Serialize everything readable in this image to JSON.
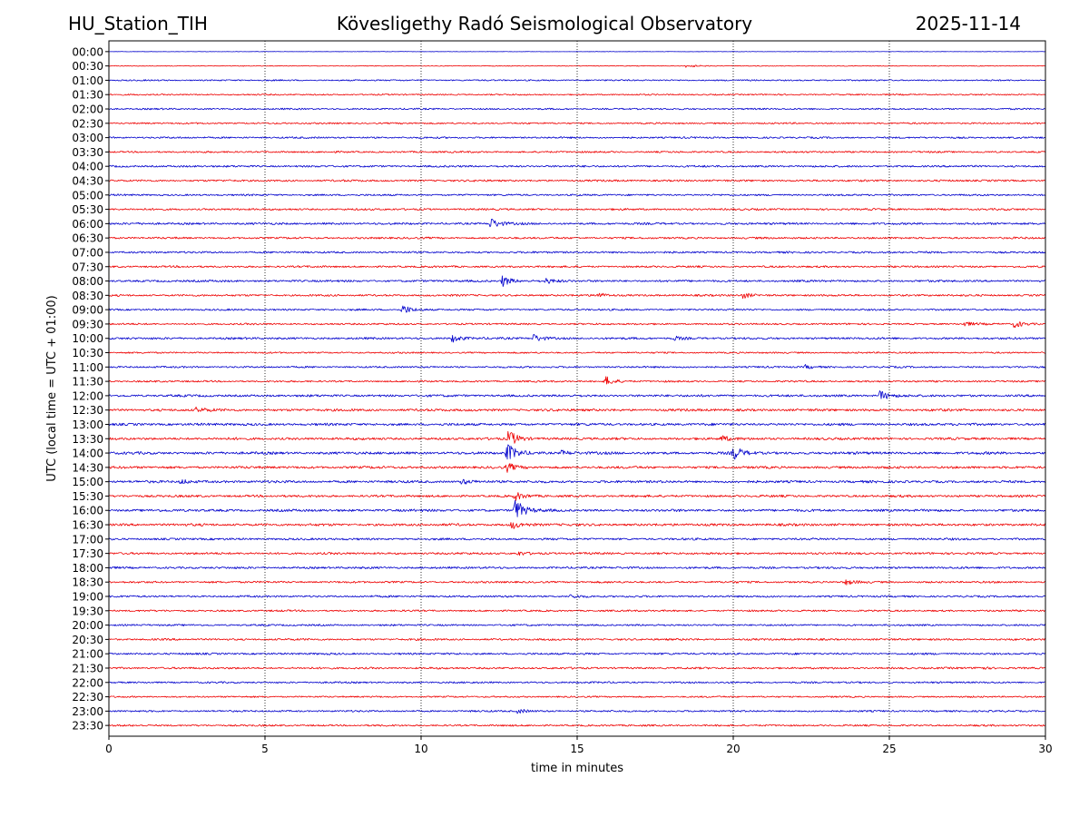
{
  "header": {
    "station": "HU_Station_TIH",
    "observatory": "Kövesligethy Radó Seismological Observatory",
    "date": "2025-11-14"
  },
  "chart_data": {
    "type": "line",
    "title": "Kövesligethy Radó Seismological Observatory",
    "xlabel": "time in minutes",
    "ylabel": "UTC (local time = UTC + 01:00)",
    "xlim": [
      0,
      30
    ],
    "xticks": [
      0,
      5,
      10,
      15,
      20,
      25,
      30
    ],
    "vertical_gridlines": [
      5,
      10,
      15,
      20,
      25
    ],
    "row_labels": [
      "00:00",
      "00:30",
      "01:00",
      "01:30",
      "02:00",
      "02:30",
      "03:00",
      "03:30",
      "04:00",
      "04:30",
      "05:00",
      "05:30",
      "06:00",
      "06:30",
      "07:00",
      "07:30",
      "08:00",
      "08:30",
      "09:00",
      "09:30",
      "10:00",
      "10:30",
      "11:00",
      "11:30",
      "12:00",
      "12:30",
      "13:00",
      "13:30",
      "14:00",
      "14:30",
      "15:00",
      "15:30",
      "16:00",
      "16:30",
      "17:00",
      "17:30",
      "18:00",
      "18:30",
      "19:00",
      "19:30",
      "20:00",
      "20:30",
      "21:00",
      "21:30",
      "22:00",
      "22:30",
      "23:00",
      "23:30"
    ],
    "series_colors": [
      "#0000cc",
      "#ee0000"
    ],
    "noise_levels": [
      0.1,
      0.2,
      0.4,
      0.4,
      0.45,
      0.45,
      0.5,
      0.5,
      0.55,
      0.55,
      0.5,
      0.55,
      0.6,
      0.55,
      0.55,
      0.55,
      0.6,
      0.55,
      0.5,
      0.5,
      0.6,
      0.45,
      0.5,
      0.5,
      0.65,
      0.7,
      0.7,
      0.7,
      0.75,
      0.7,
      0.7,
      0.65,
      0.7,
      0.7,
      0.6,
      0.6,
      0.6,
      0.55,
      0.55,
      0.5,
      0.5,
      0.55,
      0.55,
      0.55,
      0.5,
      0.45,
      0.5,
      0.5
    ],
    "events": [
      {
        "row": 1,
        "minute": 18.5,
        "amplitude": 1.0
      },
      {
        "row": 12,
        "minute": 12.2,
        "amplitude": 3.0
      },
      {
        "row": 16,
        "minute": 12.6,
        "amplitude": 2.8
      },
      {
        "row": 16,
        "minute": 14.0,
        "amplitude": 1.2
      },
      {
        "row": 17,
        "minute": 15.6,
        "amplitude": 1.5
      },
      {
        "row": 17,
        "minute": 20.3,
        "amplitude": 1.5
      },
      {
        "row": 18,
        "minute": 9.4,
        "amplitude": 2.5
      },
      {
        "row": 19,
        "minute": 29.0,
        "amplitude": 2.0
      },
      {
        "row": 19,
        "minute": 27.4,
        "amplitude": 1.0
      },
      {
        "row": 20,
        "minute": 11.0,
        "amplitude": 2.0
      },
      {
        "row": 20,
        "minute": 13.6,
        "amplitude": 2.0
      },
      {
        "row": 20,
        "minute": 18.1,
        "amplitude": 1.0
      },
      {
        "row": 22,
        "minute": 22.3,
        "amplitude": 1.0
      },
      {
        "row": 23,
        "minute": 15.9,
        "amplitude": 2.5
      },
      {
        "row": 24,
        "minute": 24.7,
        "amplitude": 2.5
      },
      {
        "row": 25,
        "minute": 2.8,
        "amplitude": 1.3
      },
      {
        "row": 27,
        "minute": 12.8,
        "amplitude": 4.5
      },
      {
        "row": 27,
        "minute": 19.6,
        "amplitude": 1.5
      },
      {
        "row": 28,
        "minute": 12.75,
        "amplitude": 5.0
      },
      {
        "row": 28,
        "minute": 20.0,
        "amplitude": 3.5
      },
      {
        "row": 28,
        "minute": 14.5,
        "amplitude": 1.2
      },
      {
        "row": 29,
        "minute": 12.75,
        "amplitude": 2.0
      },
      {
        "row": 30,
        "minute": 2.3,
        "amplitude": 1.2
      },
      {
        "row": 30,
        "minute": 11.3,
        "amplitude": 1.2
      },
      {
        "row": 31,
        "minute": 13.0,
        "amplitude": 2.0
      },
      {
        "row": 32,
        "minute": 13.0,
        "amplitude": 6.0
      },
      {
        "row": 33,
        "minute": 12.9,
        "amplitude": 2.0
      },
      {
        "row": 35,
        "minute": 13.1,
        "amplitude": 1.0
      },
      {
        "row": 37,
        "minute": 23.6,
        "amplitude": 1.2
      },
      {
        "row": 38,
        "minute": 14.8,
        "amplitude": 1.0
      },
      {
        "row": 43,
        "minute": 27.8,
        "amplitude": 1.0
      },
      {
        "row": 46,
        "minute": 13.1,
        "amplitude": 1.2
      }
    ]
  }
}
